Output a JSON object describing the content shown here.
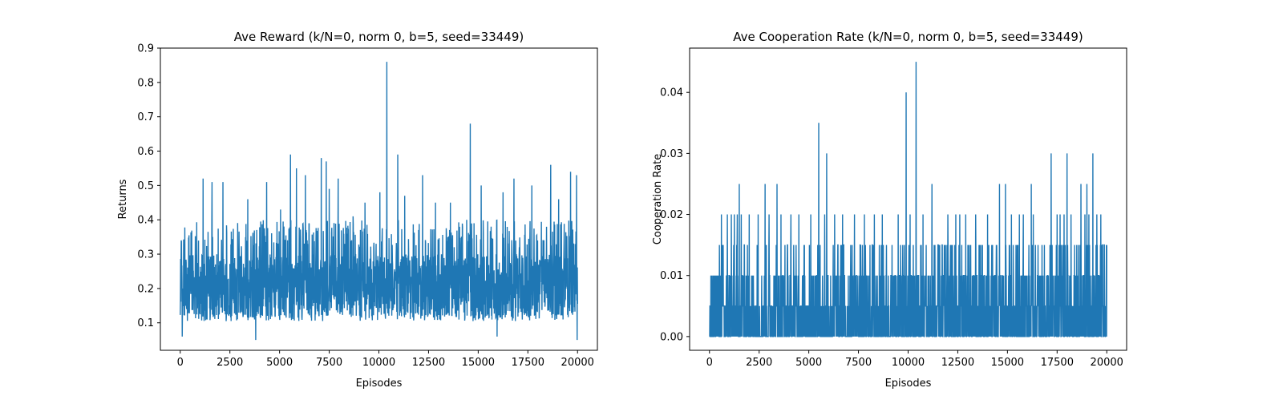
{
  "colors": {
    "series": "#1f77b4",
    "axes": "#000000",
    "background": "#ffffff"
  },
  "chart_data": [
    {
      "type": "line",
      "title": "Ave Reward (k/N=0, norm 0, b=5, seed=33449)",
      "xlabel": "Episodes",
      "ylabel": "Returns",
      "xlim": [
        -1000,
        21000
      ],
      "ylim": [
        0.02,
        0.9
      ],
      "xticks": [
        0,
        2500,
        5000,
        7500,
        10000,
        12500,
        15000,
        17500,
        20000
      ],
      "yticks": [
        0.1,
        0.2,
        0.3,
        0.4,
        0.5,
        0.6,
        0.7,
        0.8,
        0.9
      ],
      "ytick_labels": [
        "0.1",
        "0.2",
        "0.3",
        "0.4",
        "0.5",
        "0.6",
        "0.7",
        "0.8",
        "0.9"
      ],
      "grid": false,
      "legend": "none",
      "series": [
        {
          "n_episodes": 20000,
          "typical_range": [
            0.1,
            0.32
          ],
          "center": 0.2,
          "peaks": [
            {
              "x": 50,
              "y": 0.34
            },
            {
              "x": 1150,
              "y": 0.52
            },
            {
              "x": 1600,
              "y": 0.51
            },
            {
              "x": 2150,
              "y": 0.51
            },
            {
              "x": 3400,
              "y": 0.46
            },
            {
              "x": 4350,
              "y": 0.51
            },
            {
              "x": 5050,
              "y": 0.43
            },
            {
              "x": 5550,
              "y": 0.59
            },
            {
              "x": 5850,
              "y": 0.55
            },
            {
              "x": 6300,
              "y": 0.53
            },
            {
              "x": 7100,
              "y": 0.58
            },
            {
              "x": 7350,
              "y": 0.57
            },
            {
              "x": 7500,
              "y": 0.49
            },
            {
              "x": 7950,
              "y": 0.52
            },
            {
              "x": 8700,
              "y": 0.41
            },
            {
              "x": 9300,
              "y": 0.45
            },
            {
              "x": 10050,
              "y": 0.48
            },
            {
              "x": 10400,
              "y": 0.86
            },
            {
              "x": 10950,
              "y": 0.59
            },
            {
              "x": 11300,
              "y": 0.47
            },
            {
              "x": 12200,
              "y": 0.53
            },
            {
              "x": 12850,
              "y": 0.45
            },
            {
              "x": 13600,
              "y": 0.45
            },
            {
              "x": 14600,
              "y": 0.68
            },
            {
              "x": 15150,
              "y": 0.5
            },
            {
              "x": 16250,
              "y": 0.48
            },
            {
              "x": 16800,
              "y": 0.52
            },
            {
              "x": 17700,
              "y": 0.5
            },
            {
              "x": 18650,
              "y": 0.56
            },
            {
              "x": 19050,
              "y": 0.46
            },
            {
              "x": 19650,
              "y": 0.54
            },
            {
              "x": 19950,
              "y": 0.53
            }
          ],
          "troughs": [
            {
              "x": 100,
              "y": 0.06
            },
            {
              "x": 3800,
              "y": 0.05
            },
            {
              "x": 15950,
              "y": 0.06
            },
            {
              "x": 19980,
              "y": 0.05
            }
          ]
        }
      ]
    },
    {
      "type": "line",
      "title": "Ave Cooperation Rate (k/N=0, norm 0, b=5, seed=33449)",
      "xlabel": "Episodes",
      "ylabel": "Cooperation Rate",
      "xlim": [
        -1000,
        21000
      ],
      "ylim": [
        -0.00225,
        0.04725
      ],
      "xticks": [
        0,
        2500,
        5000,
        7500,
        10000,
        12500,
        15000,
        17500,
        20000
      ],
      "yticks": [
        0.0,
        0.01,
        0.02,
        0.03,
        0.04
      ],
      "ytick_labels": [
        "0.00",
        "0.01",
        "0.02",
        "0.03",
        "0.04"
      ],
      "grid": false,
      "legend": "none",
      "series": [
        {
          "n_episodes": 20000,
          "levels": [
            0,
            0.005,
            0.01,
            0.015
          ],
          "peaks": [
            {
              "x": 600,
              "y": 0.02
            },
            {
              "x": 1500,
              "y": 0.025
            },
            {
              "x": 2800,
              "y": 0.025
            },
            {
              "x": 3400,
              "y": 0.025
            },
            {
              "x": 5500,
              "y": 0.035
            },
            {
              "x": 5900,
              "y": 0.03
            },
            {
              "x": 9900,
              "y": 0.04
            },
            {
              "x": 10400,
              "y": 0.045
            },
            {
              "x": 11200,
              "y": 0.025
            },
            {
              "x": 14600,
              "y": 0.025
            },
            {
              "x": 14900,
              "y": 0.025
            },
            {
              "x": 16200,
              "y": 0.025
            },
            {
              "x": 17200,
              "y": 0.03
            },
            {
              "x": 18000,
              "y": 0.03
            },
            {
              "x": 18700,
              "y": 0.025
            },
            {
              "x": 19000,
              "y": 0.025
            },
            {
              "x": 19300,
              "y": 0.03
            }
          ],
          "spikes_002": [
            900,
            1100,
            1250,
            1400,
            1600,
            2000,
            2450,
            3000,
            3600,
            4100,
            4500,
            5100,
            5800,
            6300,
            6700,
            7300,
            7800,
            8300,
            8700,
            9500,
            10100,
            10750,
            12000,
            12400,
            12600,
            12900,
            13400,
            14000,
            15200,
            15600,
            15800,
            16300,
            17500,
            17650,
            17850,
            18200,
            18900,
            19100,
            19500,
            19700
          ]
        }
      ]
    }
  ]
}
